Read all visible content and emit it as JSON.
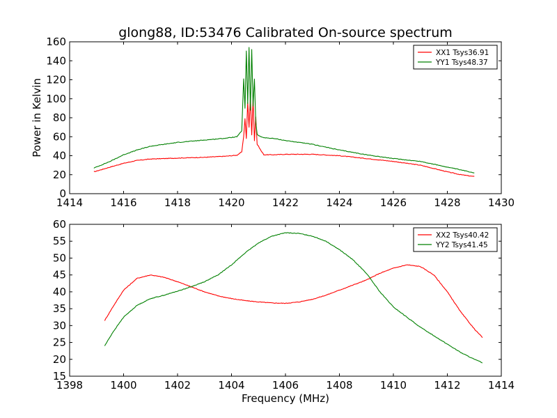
{
  "chart_data": [
    {
      "type": "line",
      "title": "glong88, ID:53476 Calibrated On-source spectrum",
      "xlabel": "",
      "ylabel": "Power in Kelvin",
      "xlim": [
        1414,
        1430
      ],
      "ylim": [
        0,
        160
      ],
      "xticks": [
        1414,
        1416,
        1418,
        1420,
        1422,
        1424,
        1426,
        1428,
        1430
      ],
      "yticks": [
        0,
        20,
        40,
        60,
        80,
        100,
        120,
        140,
        160
      ],
      "legend_position": "top-right",
      "series": [
        {
          "name": "XX1 Tsys36.91",
          "color": "#ff0000",
          "x": [
            1414.9,
            1415.5,
            1416,
            1416.5,
            1417,
            1418,
            1419,
            1419.8,
            1420.2,
            1420.38,
            1420.45,
            1420.5,
            1420.55,
            1420.6,
            1420.65,
            1420.7,
            1420.75,
            1420.8,
            1420.85,
            1420.9,
            1420.95,
            1421.0,
            1421.1,
            1421.2,
            1421.6,
            1422,
            1423,
            1424,
            1425,
            1426,
            1427,
            1428,
            1428.5,
            1429
          ],
          "y": [
            23,
            28,
            32,
            35,
            36.5,
            37.5,
            38.3,
            39.5,
            40.5,
            44,
            60,
            79,
            58,
            96,
            70,
            102,
            62,
            100,
            56,
            81,
            52,
            50,
            45,
            41,
            41,
            41.5,
            41.5,
            40,
            37,
            34,
            30,
            23,
            20,
            18
          ]
        },
        {
          "name": "YY1 Tsys48.37",
          "color": "#008000",
          "x": [
            1414.9,
            1415.5,
            1416,
            1416.5,
            1417,
            1418,
            1419,
            1419.8,
            1420.2,
            1420.38,
            1420.45,
            1420.5,
            1420.55,
            1420.6,
            1420.65,
            1420.7,
            1420.75,
            1420.8,
            1420.85,
            1420.9,
            1420.95,
            1421.0,
            1421.1,
            1421.2,
            1421.6,
            1422,
            1423,
            1424,
            1425,
            1426,
            1427,
            1428,
            1428.5,
            1429
          ],
          "y": [
            27,
            34,
            41,
            46,
            50,
            54,
            56.5,
            58.5,
            60,
            66,
            121,
            90,
            150,
            95,
            154,
            88,
            152,
            92,
            121,
            75,
            63,
            61,
            60,
            59,
            58,
            56,
            52,
            46,
            41,
            37,
            34,
            28,
            25,
            22
          ]
        }
      ]
    },
    {
      "type": "line",
      "title": "",
      "xlabel": "Frequency (MHz)",
      "ylabel": "",
      "xlim": [
        1398,
        1414
      ],
      "ylim": [
        15,
        60
      ],
      "xticks": [
        1398,
        1400,
        1402,
        1404,
        1406,
        1408,
        1410,
        1412,
        1414
      ],
      "yticks": [
        15,
        20,
        25,
        30,
        35,
        40,
        45,
        50,
        55,
        60
      ],
      "legend_position": "top-right",
      "series": [
        {
          "name": "XX2 Tsys40.42",
          "color": "#ff0000",
          "x": [
            1399.3,
            1399.6,
            1400,
            1400.5,
            1401,
            1401.5,
            1402,
            1402.5,
            1403,
            1403.5,
            1404,
            1404.5,
            1405,
            1405.5,
            1406,
            1406.5,
            1407,
            1407.5,
            1408,
            1408.5,
            1409,
            1409.5,
            1410,
            1410.5,
            1411,
            1411.5,
            1412,
            1412.5,
            1413,
            1413.3
          ],
          "y": [
            31.5,
            35.5,
            40.5,
            44,
            45,
            44.3,
            43,
            41.5,
            40,
            38.8,
            38,
            37.4,
            37,
            36.7,
            36.6,
            37,
            37.8,
            39,
            40.5,
            42,
            43.5,
            45.5,
            47,
            48,
            47.5,
            45,
            40,
            34,
            29,
            26.5
          ]
        },
        {
          "name": "YY2 Tsys41.45",
          "color": "#008000",
          "x": [
            1399.3,
            1399.6,
            1400,
            1400.5,
            1401,
            1401.5,
            1402,
            1402.5,
            1403,
            1403.5,
            1404,
            1404.5,
            1405,
            1405.5,
            1406,
            1406.5,
            1407,
            1407.5,
            1408,
            1408.5,
            1409,
            1409.5,
            1410,
            1410.5,
            1411,
            1411.5,
            1412,
            1412.5,
            1413,
            1413.3
          ],
          "y": [
            24,
            28,
            32.5,
            36,
            38,
            39,
            40.2,
            41.5,
            43,
            45,
            48,
            51.5,
            54.5,
            56.5,
            57.5,
            57.3,
            56.5,
            55,
            52.5,
            49.5,
            45.5,
            40,
            35.5,
            32.5,
            29.5,
            27,
            24.5,
            22,
            20,
            19
          ]
        }
      ]
    }
  ]
}
